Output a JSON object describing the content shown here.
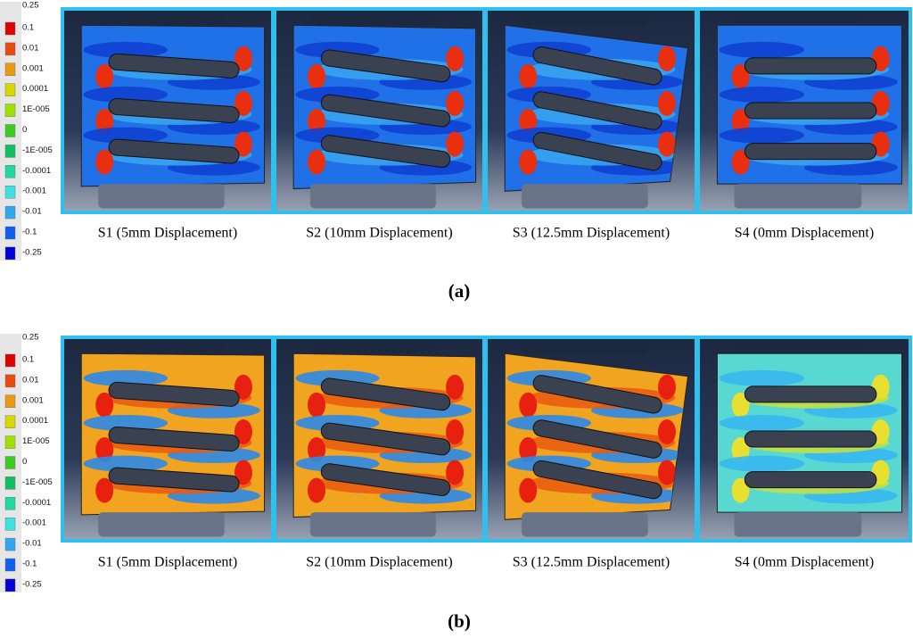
{
  "legends": [
    {
      "labels": [
        "0.25",
        "0.1",
        "0.01",
        "0.001",
        "0.0001",
        "1E-005",
        "0",
        "-1E-005",
        "-0.0001",
        "-0.001",
        "-0.01",
        "-0.1",
        "-0.25"
      ]
    },
    {
      "labels": [
        "0.25",
        "0.1",
        "0.01",
        "0.001",
        "0.0001",
        "1E-005",
        "0",
        "-1E-005",
        "-0.0001",
        "-0.001",
        "-0.01",
        "-0.1",
        "-0.25"
      ]
    }
  ],
  "panels": [
    {
      "label": "(a)",
      "captions": [
        "S1 (5mm Displacement)",
        "S2 (10mm Displacement)",
        "S3 (12.5mm Displacement)",
        "S4 (0mm Displacement)"
      ]
    },
    {
      "label": "(b)",
      "captions": [
        "S1 (5mm Displacement)",
        "S2 (10mm Displacement)",
        "S3 (12.5mm Displacement)",
        "S4 (0mm Displacement)"
      ]
    }
  ]
}
